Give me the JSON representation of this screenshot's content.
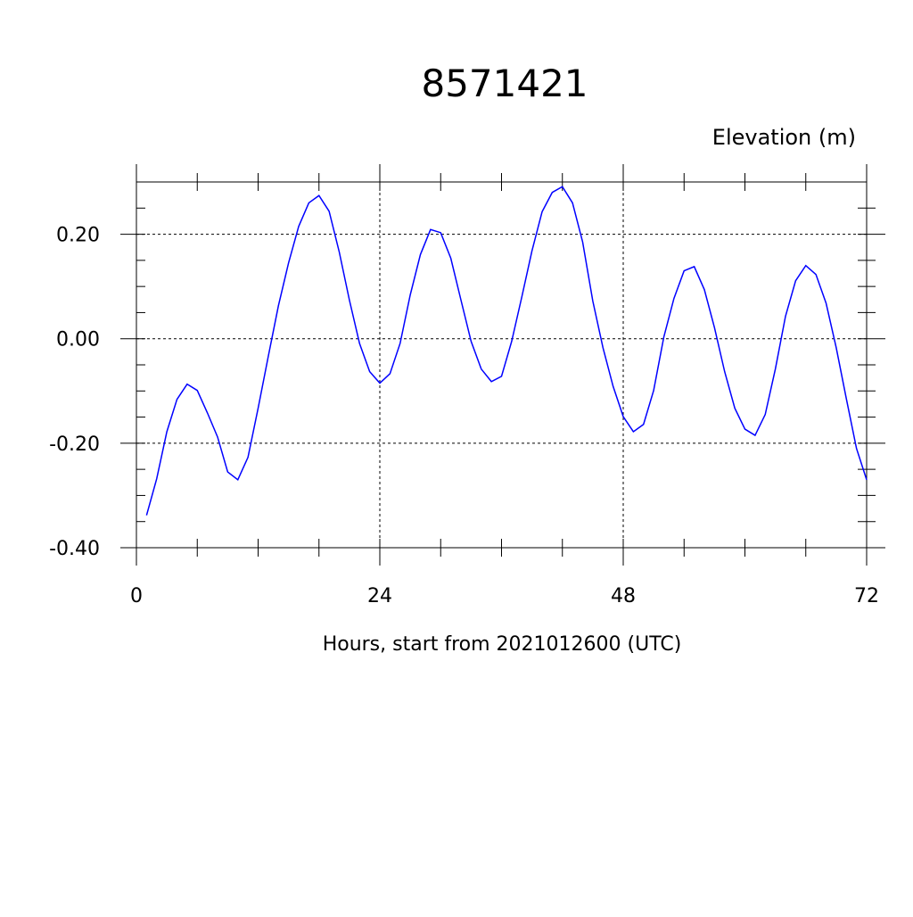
{
  "chart_data": {
    "type": "line",
    "title": "8571421",
    "subtitle": "Elevation (m)",
    "x_label": "Hours, start from 2021012600 (UTC)",
    "x": [
      1,
      2,
      3,
      4,
      5,
      6,
      7,
      8,
      9,
      10,
      11,
      12,
      13,
      14,
      15,
      16,
      17,
      18,
      19,
      20,
      21,
      22,
      23,
      24,
      25,
      26,
      27,
      28,
      29,
      30,
      31,
      32,
      33,
      34,
      35,
      36,
      37,
      38,
      39,
      40,
      41,
      42,
      43,
      44,
      45,
      46,
      47,
      48,
      49,
      50,
      51,
      52,
      53,
      54,
      55,
      56,
      57,
      58,
      59,
      60,
      61,
      62,
      63,
      64,
      65,
      66,
      67,
      68,
      69,
      70,
      71,
      72
    ],
    "series": [
      {
        "color": "#0000ff",
        "values": [
          -0.338,
          -0.268,
          -0.178,
          -0.116,
          -0.087,
          -0.099,
          -0.142,
          -0.188,
          -0.255,
          -0.27,
          -0.227,
          -0.133,
          -0.034,
          0.063,
          0.145,
          0.215,
          0.26,
          0.274,
          0.244,
          0.166,
          0.074,
          -0.009,
          -0.063,
          -0.085,
          -0.067,
          -0.009,
          0.084,
          0.161,
          0.209,
          0.203,
          0.154,
          0.074,
          -0.005,
          -0.058,
          -0.082,
          -0.072,
          -0.005,
          0.08,
          0.168,
          0.243,
          0.28,
          0.291,
          0.26,
          0.185,
          0.072,
          -0.017,
          -0.091,
          -0.149,
          -0.178,
          -0.164,
          -0.099,
          0.003,
          0.077,
          0.13,
          0.138,
          0.094,
          0.021,
          -0.063,
          -0.133,
          -0.173,
          -0.185,
          -0.145,
          -0.058,
          0.043,
          0.111,
          0.14,
          0.123,
          0.068,
          -0.017,
          -0.115,
          -0.21,
          -0.27
        ]
      }
    ],
    "xlim": [
      0,
      72
    ],
    "xticks": [
      0,
      24,
      48,
      72
    ],
    "x_minor_ticks": [
      6,
      12,
      18,
      30,
      36,
      42,
      54,
      60,
      66
    ],
    "ylim": [
      -0.4,
      0.3
    ],
    "yticks": [
      {
        "value": -0.4,
        "label": "-0.40"
      },
      {
        "value": -0.2,
        "label": "-0.20"
      },
      {
        "value": 0,
        "label": "0.00"
      },
      {
        "value": 0.2,
        "label": "0.20"
      }
    ],
    "y_minor_ticks": [
      -0.35,
      -0.3,
      -0.25,
      -0.15,
      -0.1,
      -0.05,
      0.05,
      0.1,
      0.15,
      0.25
    ],
    "grid": true
  }
}
